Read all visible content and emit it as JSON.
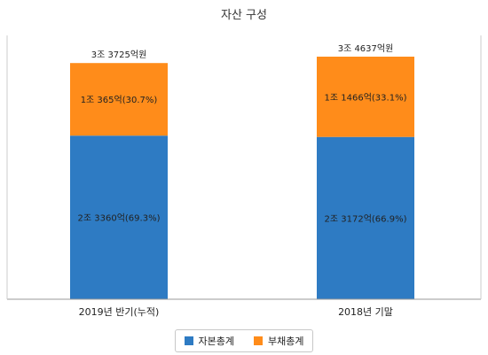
{
  "chart_data": {
    "type": "bar",
    "stacked": true,
    "title": "자산 구성",
    "categories": [
      "2019년 반기(누적)",
      "2018년 기말"
    ],
    "unit": "억원",
    "series": [
      {
        "name": "자본총계",
        "color": "#2e7bc3",
        "values": [
          23360,
          23172
        ],
        "labels": [
          "2조 3360억(69.3%)",
          "2조 3172억(66.9%)"
        ]
      },
      {
        "name": "부채총계",
        "color": "#ff8c1a",
        "values": [
          10365,
          11466
        ],
        "labels": [
          "1조 365억(30.7%)",
          "1조 1466억(33.1%)"
        ]
      }
    ],
    "totals": [
      33725,
      34637
    ],
    "total_labels": [
      "3조 3725억원",
      "3조 4637억원"
    ],
    "ylim": [
      0,
      34637
    ],
    "legend_position": "bottom",
    "grid": false
  }
}
